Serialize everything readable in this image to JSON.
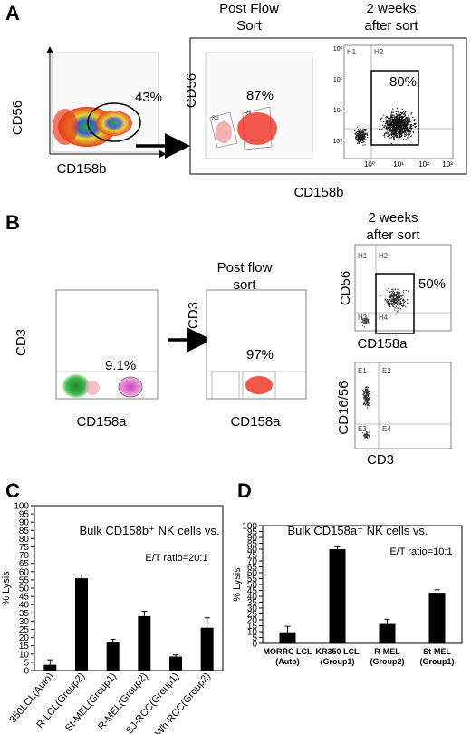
{
  "panel_a": {
    "letter": "A",
    "headers": [
      "Post Flow",
      "Sort",
      "2 weeks",
      "after sort"
    ],
    "plot1": {
      "ylabel": "CD56",
      "xlabel": "CD158b",
      "gate_pct": "43%"
    },
    "plot2": {
      "ylabel": "CD56",
      "gate_pct": "87%",
      "gate_labels": [
        "R3",
        "R4"
      ]
    },
    "plot3": {
      "gate_pct": "80%",
      "quadrants": [
        "H1",
        "H2"
      ],
      "yticks": [
        "10³",
        "10²",
        "10¹",
        "10⁰"
      ],
      "xticks": [
        "10⁰",
        "10¹",
        "10²",
        "10³"
      ]
    },
    "shared_xlabel": "CD158b"
  },
  "panel_b": {
    "letter": "B",
    "headers": [
      "Post flow",
      "sort",
      "2 weeks",
      "after sort"
    ],
    "plot1": {
      "ylabel": "CD3",
      "xlabel": "CD158a",
      "gate_pct": "9.1%"
    },
    "plot2": {
      "ylabel": "CD3",
      "xlabel": "CD158a",
      "gate_pct": "97%"
    },
    "plot3": {
      "ylabel": "CD56",
      "xlabel": "CD158a",
      "gate_pct": "50%",
      "quadrants": [
        "H1",
        "H2",
        "H3",
        "H4"
      ]
    },
    "plot4": {
      "ylabel": "CD16/56",
      "xlabel": "CD3",
      "quadrants": [
        "E1",
        "E2",
        "E3",
        "E4"
      ]
    }
  },
  "chart_data": [
    {
      "type": "bar",
      "panel": "C",
      "title": "Bulk CD158b⁺ NK cells vs.",
      "annotation": "E/T ratio=20:1",
      "ylabel": "% Lysis",
      "ylim": [
        0,
        100
      ],
      "yticks": [
        0,
        5,
        10,
        15,
        20,
        25,
        30,
        35,
        40,
        45,
        50,
        55,
        60,
        65,
        70,
        75,
        80,
        85,
        90,
        95,
        100
      ],
      "categories": [
        "350LCL(Auto)",
        "R-LCL(Group2)",
        "St-MEL(Group1)",
        "R-MEL(Group2)",
        "SJ-RCC(Group1)",
        "Wh-RCC(Group2)"
      ],
      "values": [
        3.5,
        56,
        17.5,
        33,
        8.5,
        26
      ],
      "errors": [
        3,
        2,
        1.5,
        3,
        1,
        6
      ]
    },
    {
      "type": "bar",
      "panel": "D",
      "title": "Bulk CD158a⁺ NK cells vs.",
      "annotation": "E/T ratio=10:1",
      "ylabel": "% Lysis",
      "ylim": [
        0,
        100
      ],
      "yticks": [
        0,
        5,
        10,
        15,
        20,
        25,
        30,
        35,
        40,
        45,
        50,
        55,
        60,
        65,
        70,
        75,
        80,
        85,
        90,
        95,
        100
      ],
      "categories": [
        [
          "MORRC LCL",
          "(Auto)"
        ],
        [
          "KR350 LCL",
          "(Group1)"
        ],
        [
          "R-MEL",
          "(Group2)"
        ],
        [
          "St-MEL",
          "(Group1)"
        ]
      ],
      "values": [
        9.5,
        80,
        16.5,
        43
      ],
      "errors": [
        5,
        2,
        4,
        2.5
      ]
    }
  ]
}
